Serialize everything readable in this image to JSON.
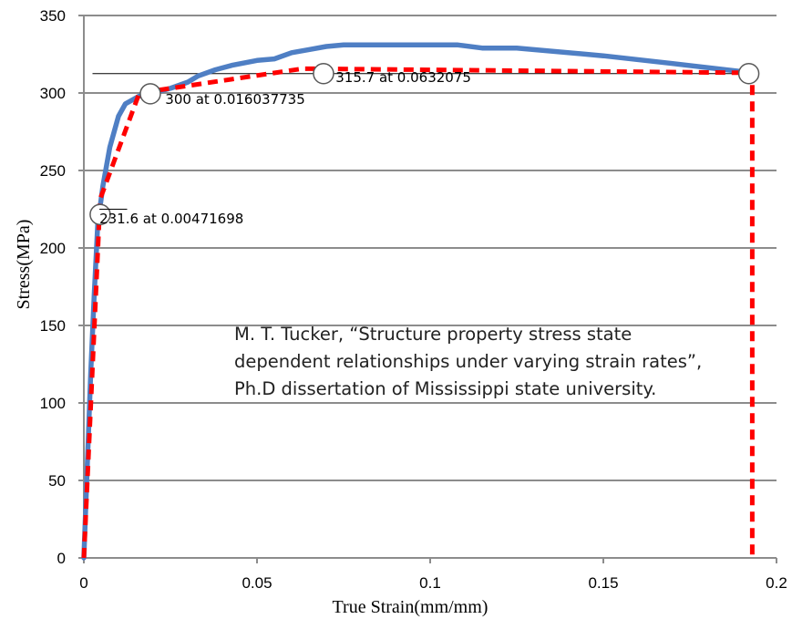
{
  "chart_data": {
    "type": "line",
    "xlabel": "True Strain(mm/mm)",
    "ylabel": "Stress(MPa)",
    "xlim": [
      0,
      0.2
    ],
    "ylim": [
      0,
      350
    ],
    "x_ticks": [
      0,
      0.05,
      0.1,
      0.15,
      0.2
    ],
    "x_tick_labels": [
      "0",
      "0.05",
      "0.1",
      "0.15",
      "0.2"
    ],
    "y_ticks": [
      0,
      50,
      100,
      150,
      200,
      250,
      300,
      350
    ],
    "y_tick_labels": [
      "0",
      "50",
      "100",
      "150",
      "200",
      "250",
      "300",
      "350"
    ],
    "grid": "horizontal",
    "series": [
      {
        "style": "solid",
        "color": "#4f7fc4",
        "points": [
          [
            0,
            0
          ],
          [
            0.001,
            60
          ],
          [
            0.002,
            120
          ],
          [
            0.003,
            170
          ],
          [
            0.004,
            215
          ],
          [
            0.0055,
            240
          ],
          [
            0.0075,
            265
          ],
          [
            0.01,
            285
          ],
          [
            0.012,
            293
          ],
          [
            0.016,
            298
          ],
          [
            0.02,
            300
          ],
          [
            0.025,
            303
          ],
          [
            0.03,
            307
          ],
          [
            0.033,
            311
          ],
          [
            0.038,
            315
          ],
          [
            0.043,
            318
          ],
          [
            0.05,
            321
          ],
          [
            0.055,
            322
          ],
          [
            0.06,
            326
          ],
          [
            0.065,
            328
          ],
          [
            0.07,
            330
          ],
          [
            0.075,
            331
          ],
          [
            0.085,
            331
          ],
          [
            0.1,
            331
          ],
          [
            0.108,
            331
          ],
          [
            0.115,
            329
          ],
          [
            0.125,
            329
          ],
          [
            0.15,
            324
          ],
          [
            0.17,
            319
          ],
          [
            0.193,
            313
          ]
        ]
      },
      {
        "style": "dashed",
        "color": "#ff0000",
        "points": [
          [
            0,
            0
          ],
          [
            0.00471698,
            231.6
          ],
          [
            0.016037735,
            300
          ],
          [
            0.0632075,
            315.7
          ],
          [
            0.193,
            313
          ],
          [
            0.193,
            0
          ]
        ]
      }
    ],
    "markers": [
      [
        0.00471698,
        221.6
      ],
      [
        0.0192,
        299.5
      ],
      [
        0.0692,
        312.5
      ],
      [
        0.192,
        312.5
      ]
    ],
    "reference_line": {
      "x": [
        0.0025,
        0.192
      ],
      "y": 312.5
    },
    "annotations": [
      {
        "text": "231.6 at 0.00471698",
        "x": 0.0045,
        "y": 216
      },
      {
        "text": "300 at 0.016037735",
        "x": 0.0235,
        "y": 293
      },
      {
        "text": "315.7 at 0.0632075",
        "x": 0.0727,
        "y": 307
      }
    ],
    "citation": [
      "M. T. Tucker, “Structure property stress state",
      "dependent relationships under varying strain rates”,",
      "Ph.D dissertation of Mississippi state university."
    ],
    "colors": {
      "grid": "#8c8c8c",
      "true_curve": "#4f7fc4",
      "model_curve": "#ff0000",
      "marker_fill": "#ffffff",
      "marker_stroke": "#595959",
      "reference_line": "#000000"
    }
  }
}
